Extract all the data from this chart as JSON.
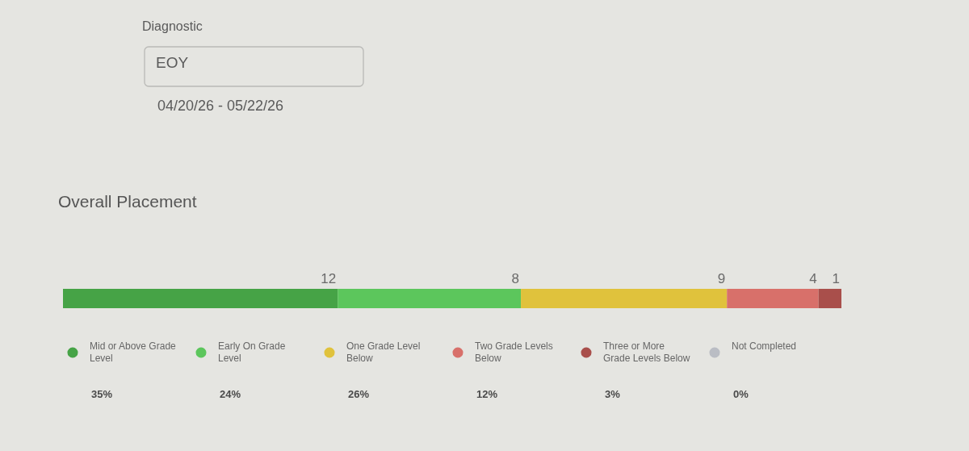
{
  "chart_data": {
    "type": "bar",
    "orientation": "horizontal",
    "stacked": true,
    "title": "Overall Placement",
    "categories": [
      null
    ],
    "tick_labels": false,
    "legend": "bottom",
    "series": [
      {
        "name": "Mid or Above Grade Level",
        "color": "#46a346",
        "values": [
          12
        ],
        "value_labels": [
          "12"
        ]
      },
      {
        "name": "Early On Grade Level",
        "color": "#5cc65c",
        "values": [
          8
        ],
        "value_labels": [
          "8"
        ]
      },
      {
        "name": "One Grade Level Below",
        "color": "#e0c23c",
        "values": [
          9
        ],
        "value_labels": [
          "9"
        ]
      },
      {
        "name": "Two Grade Levels Below",
        "color": "#d8706a",
        "values": [
          4
        ],
        "value_labels": [
          "4"
        ]
      },
      {
        "name": "Three or More Grade Levels Below",
        "color": "#a94f4b",
        "values": [
          1
        ],
        "value_labels": [
          "1"
        ]
      },
      {
        "name": "Not Completed",
        "color": "#babdc4",
        "values": [
          0
        ],
        "value_labels": [
          null
        ]
      }
    ],
    "annotations": [
      "Diagnostic",
      "EOY",
      "04/20/26 - 05/22/26",
      "35%",
      "24%",
      "26%",
      "12%",
      "3%",
      "0%"
    ]
  }
}
